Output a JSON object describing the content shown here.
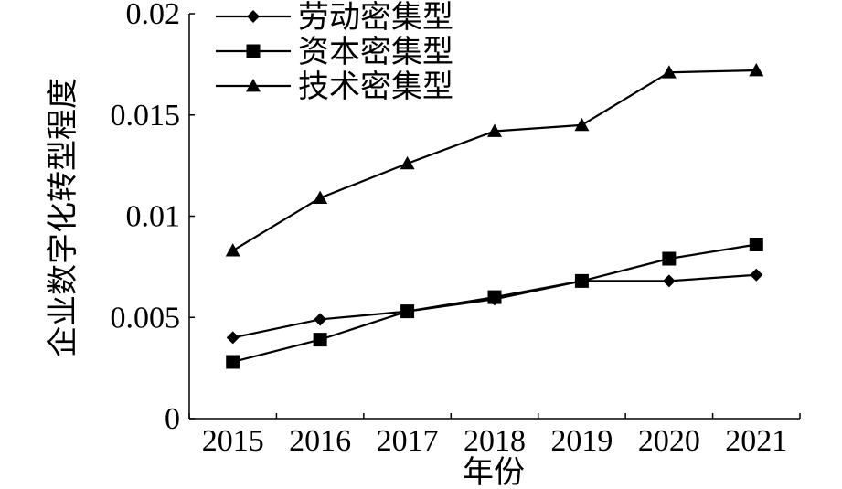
{
  "chart_data": {
    "type": "line",
    "title": "",
    "xlabel": "年份",
    "ylabel": "企业数字化转型程度",
    "categories": [
      "2015",
      "2016",
      "2017",
      "2018",
      "2019",
      "2020",
      "2021"
    ],
    "ylim": [
      0,
      0.02
    ],
    "yticks": [
      "0",
      "0.005",
      "0.01",
      "0.015",
      "0.02"
    ],
    "yticks_values": [
      0,
      0.005,
      0.01,
      0.015,
      0.02
    ],
    "legend_position": "top-left",
    "grid": false,
    "series": [
      {
        "name": "劳动密集型",
        "marker": "diamond",
        "values": [
          0.004,
          0.0049,
          0.0053,
          0.0059,
          0.0068,
          0.0068,
          0.0071
        ]
      },
      {
        "name": "资本密集型",
        "marker": "square",
        "values": [
          0.0028,
          0.0039,
          0.0053,
          0.006,
          0.0068,
          0.0079,
          0.0086
        ]
      },
      {
        "name": "技术密集型",
        "marker": "triangle",
        "values": [
          0.0083,
          0.0109,
          0.0126,
          0.0142,
          0.0145,
          0.0171,
          0.0172
        ]
      }
    ]
  }
}
